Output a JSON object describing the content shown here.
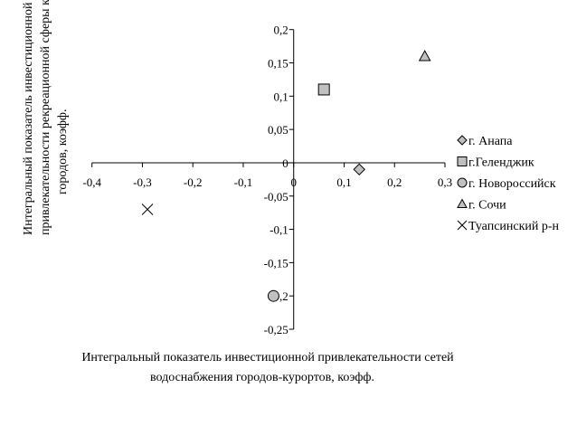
{
  "chart_data": {
    "type": "scatter",
    "title": "",
    "xlabel_lines": [
      "Интегральный показатель инвестиционной привлекательности сетей",
      "водоснабжения городов-курортов, коэфф."
    ],
    "ylabel_lines": [
      "Интегральный показатель инвестиционной",
      "привлекательности рекреационной сферы курортн",
      "городов, коэфф."
    ],
    "xlim": [
      -0.4,
      0.3
    ],
    "ylim": [
      -0.25,
      0.2
    ],
    "x_ticks": [
      -0.4,
      -0.3,
      -0.2,
      -0.1,
      0,
      0.1,
      0.2,
      0.3
    ],
    "x_tick_labels": [
      "-0,4",
      "-0,3",
      "-0,2",
      "-0,1",
      "0",
      "0,1",
      "0,2",
      "0,3"
    ],
    "y_ticks": [
      0.2,
      0.15,
      0.1,
      0.05,
      0,
      -0.05,
      -0.1,
      -0.15,
      -0.2,
      -0.25
    ],
    "y_tick_labels": [
      "0,2",
      "0,15",
      "0,1",
      "0,05",
      "0",
      "-0,05",
      "-0,1",
      "-0,15",
      "-0,2",
      "-0,25"
    ],
    "grid": false,
    "legend_position": "right",
    "series": [
      {
        "name": "г. Анапа",
        "marker": "diamond",
        "color": "#c0c0c0",
        "x": 0.13,
        "y": -0.01
      },
      {
        "name": "г.Геленджик",
        "marker": "square",
        "color": "#c0c0c0",
        "x": 0.06,
        "y": 0.11
      },
      {
        "name": "г. Новороссийск",
        "marker": "circle",
        "color": "#c0c0c0",
        "x": -0.04,
        "y": -0.2
      },
      {
        "name": "г. Сочи",
        "marker": "triangle",
        "color": "#c0c0c0",
        "x": 0.26,
        "y": 0.16
      },
      {
        "name": "Туапсинский р-н",
        "marker": "cross",
        "color": "#000000",
        "x": -0.29,
        "y": -0.07
      }
    ]
  }
}
